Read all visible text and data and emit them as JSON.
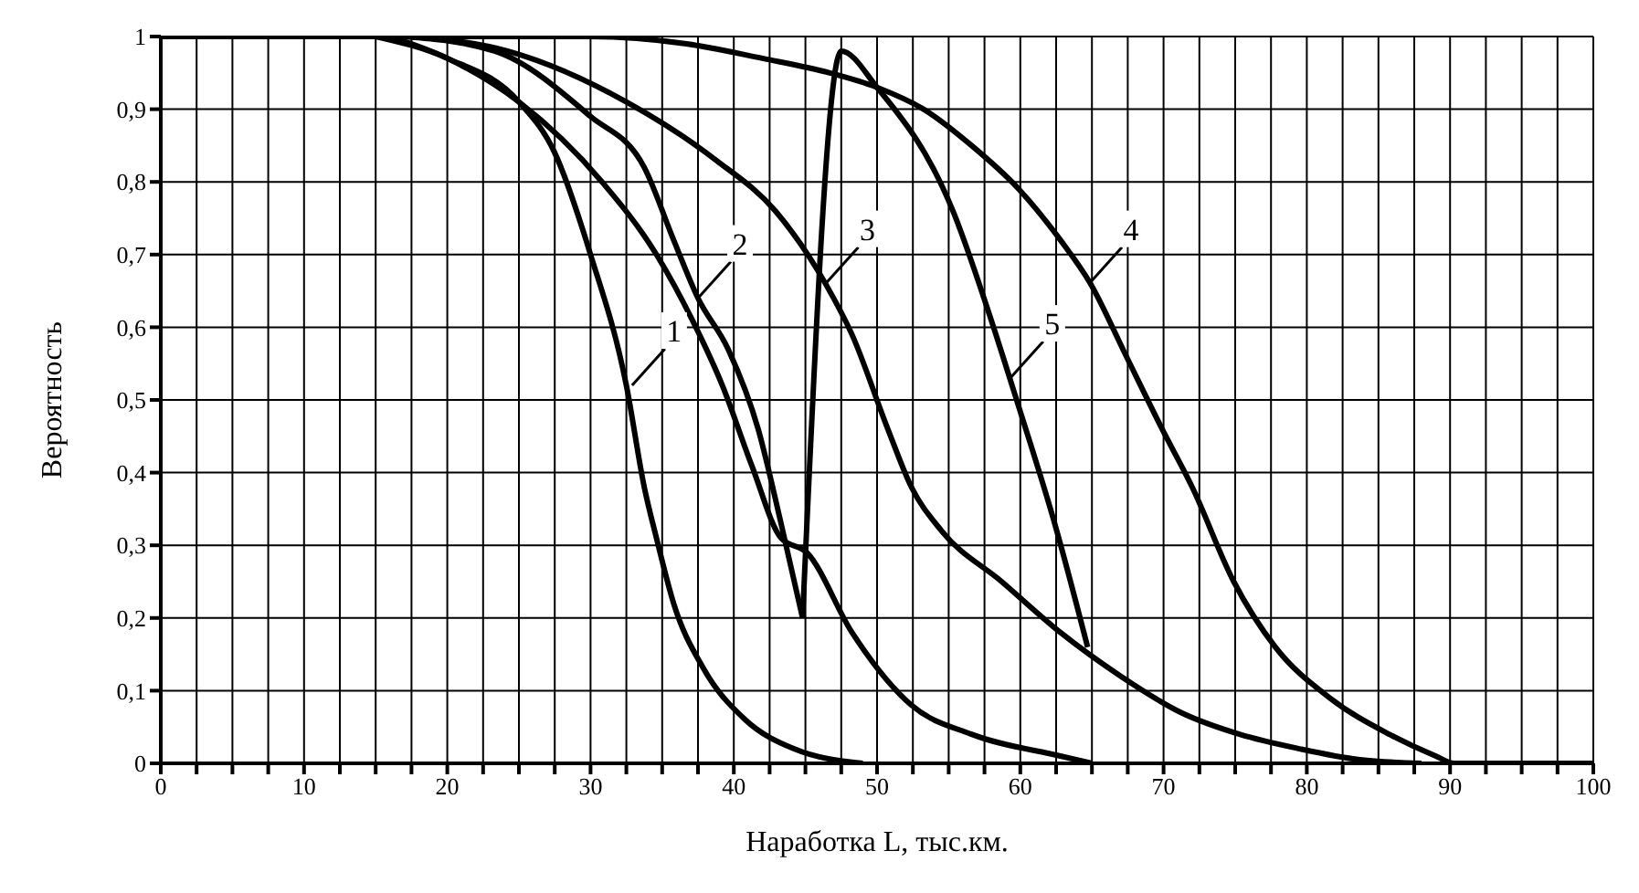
{
  "chart_data": {
    "type": "line",
    "xlabel": "Наработка L, тыс.км.",
    "ylabel": "Вероятность",
    "xlim": [
      0,
      100
    ],
    "ylim": [
      0,
      1
    ],
    "xticks": [
      0,
      {
        "value": 2.5,
        "label": null
      },
      {
        "value": 5,
        "label": null
      },
      {
        "value": 7.5,
        "label": null
      },
      10,
      {
        "value": 12.5,
        "label": null
      },
      {
        "value": 15,
        "label": null
      },
      {
        "value": 17.5,
        "label": null
      },
      20,
      {
        "value": 22.5,
        "label": null
      },
      {
        "value": 25,
        "label": null
      },
      {
        "value": 27.5,
        "label": null
      },
      30,
      {
        "value": 32.5,
        "label": null
      },
      {
        "value": 35,
        "label": null
      },
      {
        "value": 37.5,
        "label": null
      },
      40,
      {
        "value": 42.5,
        "label": null
      },
      {
        "value": 45,
        "label": null
      },
      {
        "value": 47.5,
        "label": null
      },
      50,
      {
        "value": 52.5,
        "label": null
      },
      {
        "value": 55,
        "label": null
      },
      {
        "value": 57.5,
        "label": null
      },
      60,
      {
        "value": 62.5,
        "label": null
      },
      {
        "value": 65,
        "label": null
      },
      {
        "value": 67.5,
        "label": null
      },
      70,
      {
        "value": 72.5,
        "label": null
      },
      {
        "value": 75,
        "label": null
      },
      {
        "value": 77.5,
        "label": null
      },
      80,
      {
        "value": 82.5,
        "label": null
      },
      {
        "value": 85,
        "label": null
      },
      {
        "value": 87.5,
        "label": null
      },
      90,
      {
        "value": 92.5,
        "label": null
      },
      {
        "value": 95,
        "label": null
      },
      {
        "value": 97.5,
        "label": null
      },
      100
    ],
    "yticks": [
      0,
      {
        "value": 0.1,
        "label": "0,1"
      },
      {
        "value": 0.2,
        "label": "0,2"
      },
      {
        "value": 0.3,
        "label": "0,3"
      },
      {
        "value": 0.4,
        "label": "0,4"
      },
      {
        "value": 0.5,
        "label": "0,5"
      },
      {
        "value": 0.6,
        "label": "0,6"
      },
      {
        "value": 0.7,
        "label": "0,7"
      },
      {
        "value": 0.8,
        "label": "0,8"
      },
      {
        "value": 0.9,
        "label": "0,9"
      },
      1
    ],
    "grid": true,
    "marker": "none",
    "line_style": "solid",
    "series": [
      {
        "color": "#000000",
        "x": [
          15,
          20,
          25,
          27.5,
          30,
          32.5,
          33.75,
          34.6,
          35.8,
          37.9,
          40.8,
          44.2,
          49
        ],
        "values": [
          1,
          0.97,
          0.91,
          0.84,
          0.7,
          0.52,
          0.38,
          0.31,
          0.22,
          0.13,
          0.06,
          0.02,
          0
        ]
      },
      {
        "color": "#000000",
        "x": [
          16,
          20,
          25,
          30.8,
          34.6,
          37.1,
          39.2,
          41.25,
          43.3,
          45.1,
          48.25,
          52.4,
          56.6,
          62.8,
          65
        ],
        "values": [
          1,
          0.97,
          0.91,
          0.8,
          0.7,
          0.61,
          0.52,
          0.41,
          0.31,
          0.29,
          0.18,
          0.08,
          0.04,
          0.01,
          0
        ]
      },
      {
        "color": "#000000",
        "x": [
          17,
          23.3,
          30,
          33.75,
          35.8,
          37.5,
          39.6,
          41.7,
          43.3,
          44.8
        ],
        "values": [
          1,
          0.98,
          0.89,
          0.82,
          0.72,
          0.64,
          0.57,
          0.46,
          0.33,
          0.2
        ]
      },
      {
        "color": "#000000",
        "x": [
          44.8,
          47.5,
          50,
          55.3,
          57.8,
          59.9,
          62.4,
          64.7
        ],
        "values": [
          0.2,
          0.98,
          0.93,
          0.76,
          0.62,
          0.49,
          0.33,
          0.16
        ]
      },
      {
        "color": "#000000",
        "x": [
          18,
          24.2,
          32.5,
          38.75,
          42.9,
          46.4,
          48.25,
          50.75,
          52.4,
          54.5,
          58.7,
          62.8,
          67,
          71.2,
          75.3,
          79.5,
          83.7,
          88
        ],
        "values": [
          1,
          0.98,
          0.91,
          0.83,
          0.76,
          0.66,
          0.59,
          0.46,
          0.38,
          0.32,
          0.25,
          0.18,
          0.12,
          0.07,
          0.04,
          0.02,
          0.005,
          0
        ]
      },
      {
        "color": "#000000",
        "x": [
          0,
          30,
          36.7,
          42,
          46.7,
          50,
          53.25,
          56.6,
          59.9,
          62.8,
          64.9,
          67.4,
          69.9,
          72,
          74.9,
          77.8,
          81.6,
          85.75,
          89,
          90.3,
          100
        ],
        "values": [
          1,
          1,
          0.99,
          0.97,
          0.95,
          0.93,
          0.9,
          0.85,
          0.79,
          0.72,
          0.66,
          0.56,
          0.46,
          0.38,
          0.25,
          0.16,
          0.09,
          0.04,
          0.01,
          0,
          0
        ]
      }
    ],
    "annotations": [
      {
        "text": "1",
        "x": 32.9,
        "y": 0.52
      },
      {
        "text": "2",
        "x": 37.5,
        "y": 0.64
      },
      {
        "text": "3",
        "x": 46.4,
        "y": 0.66
      },
      {
        "text": "4",
        "x": 64.8,
        "y": 0.66
      },
      {
        "text": "5",
        "x": 59.3,
        "y": 0.53
      }
    ],
    "legend": false
  }
}
